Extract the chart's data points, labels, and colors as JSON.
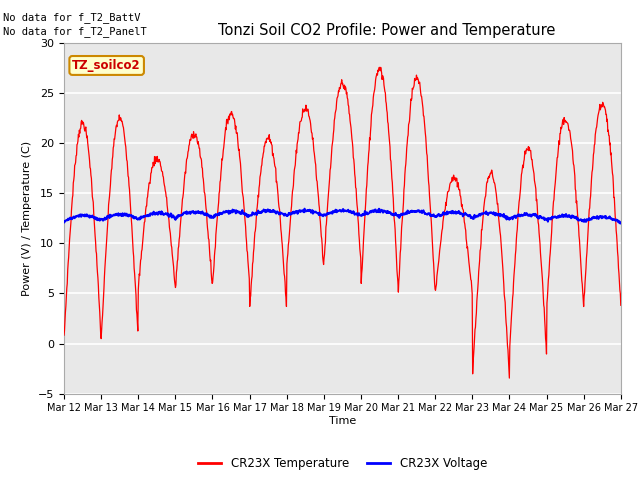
{
  "title": "Tonzi Soil CO2 Profile: Power and Temperature",
  "ylabel": "Power (V) / Temperature (C)",
  "xlabel": "Time",
  "ylim": [
    -5,
    30
  ],
  "yticks": [
    -5,
    0,
    5,
    10,
    15,
    20,
    25,
    30
  ],
  "no_data_text1": "No data for f_T2_BattV",
  "no_data_text2": "No data for f_T2_PanelT",
  "legend_label_box": "TZ_soilco2",
  "legend_temp": "CR23X Temperature",
  "legend_volt": "CR23X Voltage",
  "temp_color": "#ff0000",
  "volt_color": "#0000ff",
  "fig_bg": "#ffffff",
  "plot_bg": "#e8e8e8",
  "grid_color": "#ffffff",
  "x_start": 12,
  "x_end": 27,
  "x_ticks": [
    12,
    13,
    14,
    15,
    16,
    17,
    18,
    19,
    20,
    21,
    22,
    23,
    24,
    25,
    26,
    27
  ],
  "x_tick_labels": [
    "Mar 12",
    "Mar 13",
    "Mar 14",
    "Mar 15",
    "Mar 16",
    "Mar 17",
    "Mar 18",
    "Mar 19",
    "Mar 20",
    "Mar 21",
    "Mar 22",
    "Mar 23",
    "Mar 24",
    "Mar 25",
    "Mar 26",
    "Mar 27"
  ],
  "temp_peaks": [
    22,
    22.5,
    18.5,
    21,
    23,
    20.5,
    23.5,
    26,
    27.5,
    26.5,
    16.5,
    17,
    19.5,
    22.5,
    24,
    7
  ],
  "temp_mins": [
    0.5,
    0.3,
    5.5,
    5.5,
    5.8,
    3.5,
    7.5,
    8,
    5.5,
    5,
    5,
    -3.5,
    -1,
    3.5,
    3.8,
    3.5
  ]
}
